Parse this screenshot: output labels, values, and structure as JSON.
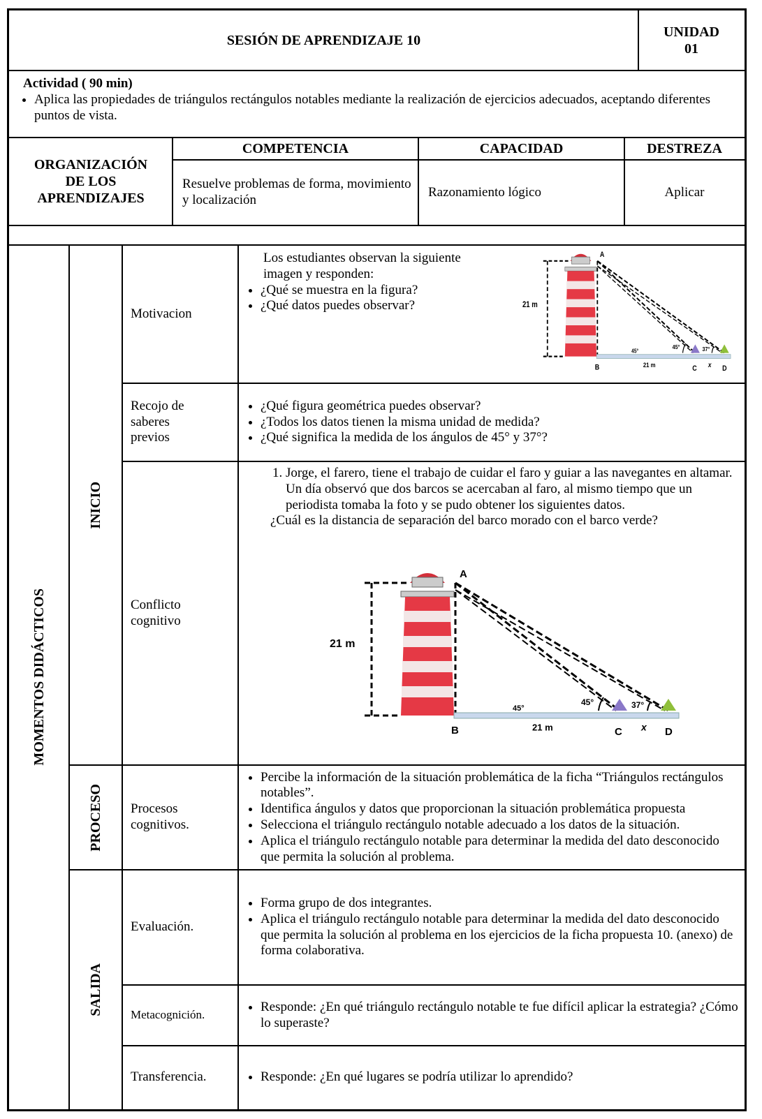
{
  "header": {
    "title": "SESIÓN DE APRENDIZAJE 10",
    "unit": [
      "UNIDAD",
      "01"
    ]
  },
  "activity": {
    "title": "Actividad ( 90 min)",
    "items": [
      "Aplica las propiedades de triángulos rectángulos notables mediante la realización de ejercicios adecuados, aceptando diferentes puntos de vista."
    ]
  },
  "organization": {
    "label": "ORGANIZACIÓN DE LOS APRENDIZAJES",
    "headers": [
      "COMPETENCIA",
      "CAPACIDAD",
      "DESTREZA"
    ],
    "values": [
      "Resuelve problemas de forma, movimiento y localización",
      "Razonamiento lógico",
      "Aplicar"
    ]
  },
  "moments": {
    "label": "MOMENTOS DIDÁCTICOS",
    "phases": [
      {
        "name": "INICIO",
        "rows": [
          {
            "label": "Motivacion",
            "intro": "Los estudiantes observan la siguiente imagen y responden:",
            "items": [
              "¿Qué se muestra en la figura?",
              "¿Qué datos puedes observar?"
            ]
          },
          {
            "label": "Recojo de saberes previos",
            "items": [
              "¿Qué figura geométrica puedes observar?",
              "¿Todos los datos tienen la misma unidad de medida?",
              "¿Qué significa la medida de los ángulos de 45° y 37°?"
            ]
          },
          {
            "label": "Conflicto cognitivo",
            "items": [
              "Jorge, el farero, tiene el trabajo de cuidar el faro y guiar a las navegantes en altamar. Un día observó que dos barcos se acercaban al faro, al mismo tiempo que un periodista tomaba la foto y se pudo obtener los siguientes datos."
            ],
            "question": "¿Cuál es la distancia de separación del barco morado con el barco verde?"
          }
        ]
      },
      {
        "name": "PROCESO",
        "rows": [
          {
            "label": "Procesos cognitivos.",
            "items": [
              "Percibe la información de la situación problemática de la ficha “Triángulos rectángulos notables”.",
              "Identifica ángulos y datos que proporcionan la situación problemática propuesta",
              "Selecciona el triángulo rectángulo notable adecuado a los datos de la situación.",
              "Aplica el triángulo rectángulo notable para determinar la medida del dato desconocido que permita la solución al problema."
            ]
          }
        ]
      },
      {
        "name": "SALIDA",
        "rows": [
          {
            "label": "Evaluación.",
            "items": [
              "Forma grupo de dos integrantes.",
              "Aplica el triángulo rectángulo notable para determinar la medida del dato desconocido que permita la solución al problema en los ejercicios de la ficha propuesta 10. (anexo) de forma colaborativa."
            ]
          },
          {
            "label": "Metacognición.",
            "items": [
              "Responde: ¿En qué triángulo rectángulo notable te fue difícil aplicar la estrategia? ¿Cómo lo superaste?"
            ]
          },
          {
            "label": "Transferencia.",
            "items": [
              "Responde: ¿En qué lugares se podría utilizar lo aprendido?"
            ]
          }
        ]
      }
    ]
  },
  "figure": {
    "height": "21 m",
    "points": [
      "A",
      "B",
      "C",
      "D"
    ],
    "angles": [
      "45°",
      "37°"
    ],
    "base_angle": "45°",
    "base": "21 m",
    "unknown": "x"
  }
}
